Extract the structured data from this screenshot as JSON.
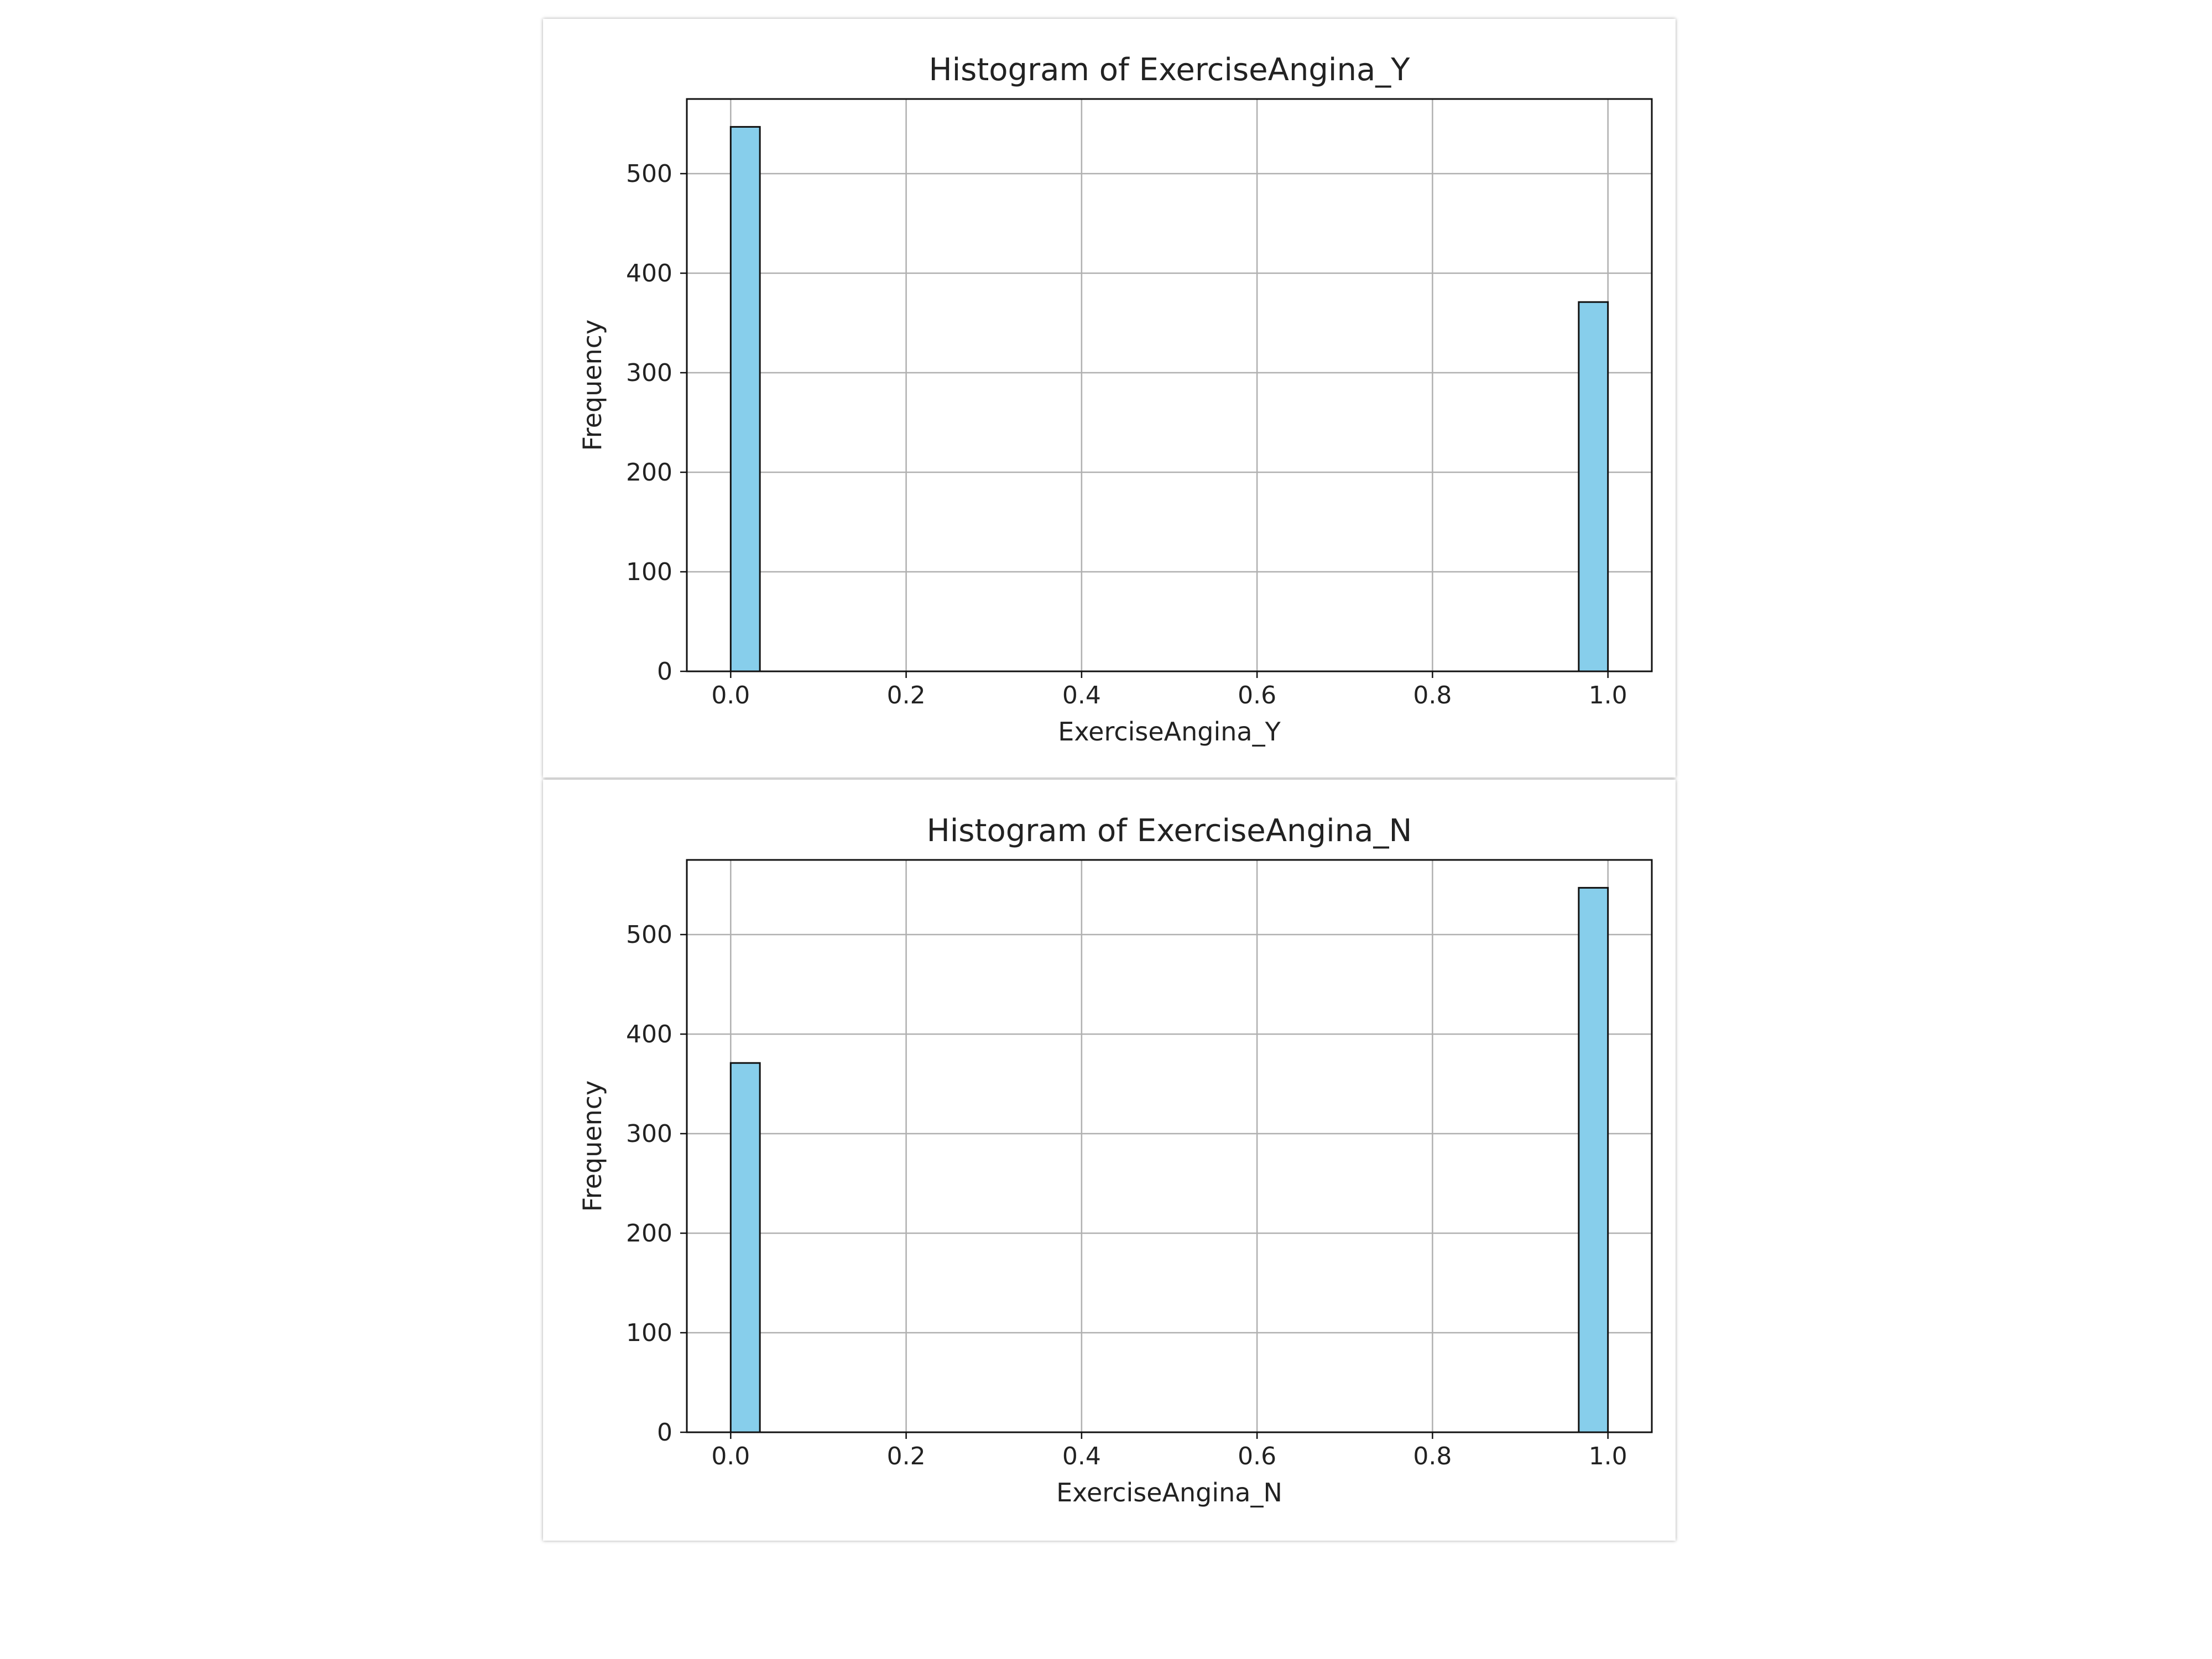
{
  "chart_data": [
    {
      "type": "bar",
      "title": "Histogram of ExerciseAngina_Y",
      "xlabel": "ExerciseAngina_Y",
      "ylabel": "Frequency",
      "xlim": [
        -0.05,
        1.05
      ],
      "ylim": [
        0,
        575
      ],
      "xticks": [
        "0.0",
        "0.2",
        "0.4",
        "0.6",
        "0.8",
        "1.0"
      ],
      "yticks": [
        "0",
        "100",
        "200",
        "300",
        "400",
        "500"
      ],
      "grid": true,
      "bar_color": "#87CEEB",
      "edge_color": "#111111",
      "bins": [
        {
          "x0": 0.0,
          "x1": 0.0333,
          "value": 547
        },
        {
          "x0": 0.9667,
          "x1": 1.0,
          "value": 371
        }
      ]
    },
    {
      "type": "bar",
      "title": "Histogram of ExerciseAngina_N",
      "xlabel": "ExerciseAngina_N",
      "ylabel": "Frequency",
      "xlim": [
        -0.05,
        1.05
      ],
      "ylim": [
        0,
        575
      ],
      "xticks": [
        "0.0",
        "0.2",
        "0.4",
        "0.6",
        "0.8",
        "1.0"
      ],
      "yticks": [
        "0",
        "100",
        "200",
        "300",
        "400",
        "500"
      ],
      "grid": true,
      "bar_color": "#87CEEB",
      "edge_color": "#111111",
      "bins": [
        {
          "x0": 0.0,
          "x1": 0.0333,
          "value": 371
        },
        {
          "x0": 0.9667,
          "x1": 1.0,
          "value": 547
        }
      ]
    }
  ]
}
